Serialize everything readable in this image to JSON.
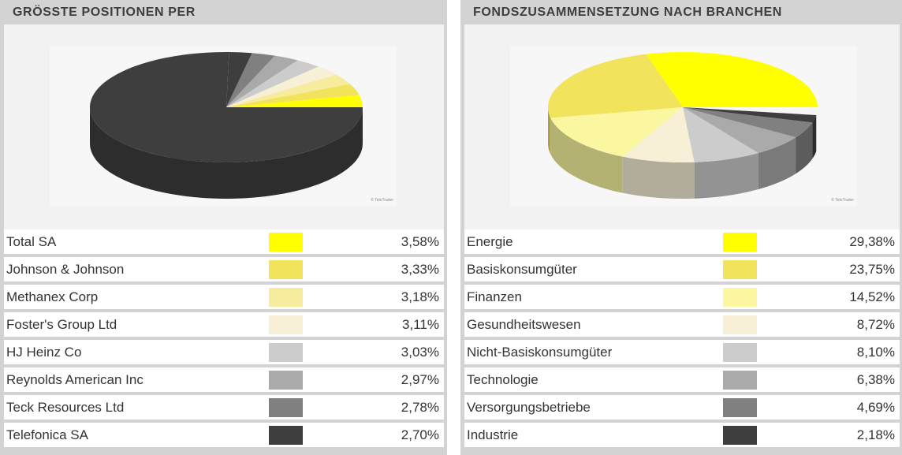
{
  "chart_data": [
    {
      "type": "pie",
      "title": "GRÖSSTE POSITIONEN PER",
      "watermark": "© TeleTrader",
      "colors": {
        "rest": "#3e3e3e"
      },
      "categories": [
        "Total SA",
        "Johnson & Johnson",
        "Methanex Corp",
        "Foster's Group Ltd",
        "HJ Heinz Co",
        "Reynolds American Inc",
        "Teck Resources Ltd",
        "Telefonica SA"
      ],
      "values": [
        3.58,
        3.33,
        3.18,
        3.11,
        3.03,
        2.97,
        2.78,
        2.7
      ],
      "labels": [
        "3,58%",
        "3,33%",
        "3,18%",
        "3,11%",
        "3,03%",
        "2,97%",
        "2,78%",
        "2,70%"
      ],
      "slice_colors": [
        "#ffff00",
        "#f2e35c",
        "#f7eb9e",
        "#f7f0d6",
        "#cccccc",
        "#aaaaaa",
        "#808080",
        "#3e3e3e"
      ]
    },
    {
      "type": "pie",
      "title": "FONDSZUSAMMENSETZUNG NACH BRANCHEN",
      "watermark": "© TeleTrader",
      "categories": [
        "Energie",
        "Basiskonsumgüter",
        "Finanzen",
        "Gesundheitswesen",
        "Nicht-Basiskonsumgüter",
        "Technologie",
        "Versorgungsbetriebe",
        "Industrie"
      ],
      "values": [
        29.38,
        23.75,
        14.52,
        8.72,
        8.1,
        6.38,
        4.69,
        2.18
      ],
      "labels": [
        "29,38%",
        "23,75%",
        "14,52%",
        "8,72%",
        "8,10%",
        "6,38%",
        "4,69%",
        "2,18%"
      ],
      "slice_colors": [
        "#ffff00",
        "#f2e35c",
        "#faf7a0",
        "#f7f0d6",
        "#cccccc",
        "#aaaaaa",
        "#808080",
        "#3e3e3e"
      ]
    }
  ]
}
